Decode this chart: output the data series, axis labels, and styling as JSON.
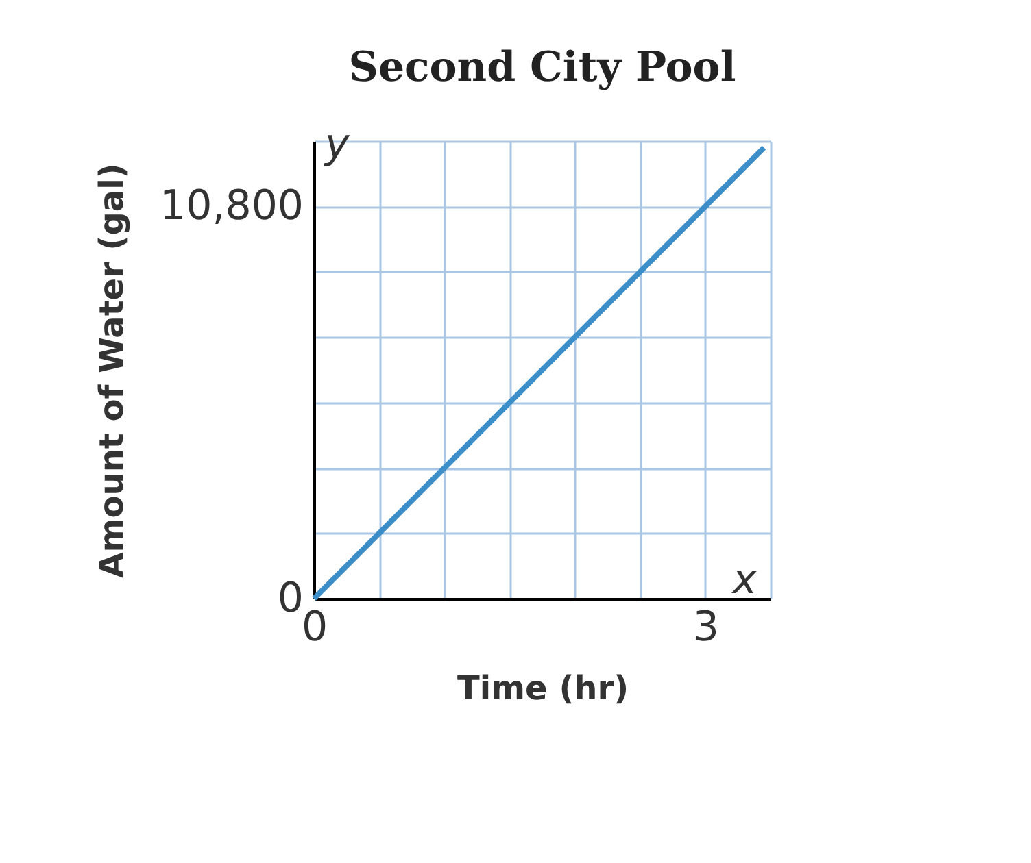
{
  "chart_data": {
    "type": "line",
    "title": "Second City Pool",
    "xlabel": "Time (hr)",
    "ylabel": "Amount of Water (gal)",
    "x": [
      0,
      3.45
    ],
    "series": [
      {
        "color": "#3b8ec8",
        "values": [
          0,
          12420
        ]
      }
    ],
    "xlim": [
      0,
      3.5
    ],
    "ylim": [
      0,
      12600
    ],
    "xticks": [
      0,
      {
        "value": 0.5,
        "label": null
      },
      {
        "value": 1,
        "label": null
      },
      {
        "value": 1.5,
        "label": null
      },
      {
        "value": 2,
        "label": null
      },
      {
        "value": 2.5,
        "label": null
      },
      3,
      {
        "value": 3.5,
        "label": null
      }
    ],
    "yticks": [
      0,
      {
        "value": 1800,
        "label": null
      },
      {
        "value": 3600,
        "label": null
      },
      {
        "value": 5400,
        "label": null
      },
      {
        "value": 7200,
        "label": null
      },
      {
        "value": 9000,
        "label": null
      },
      {
        "value": 10800,
        "label": "10,800"
      },
      {
        "value": 12600,
        "label": null
      }
    ],
    "grid": true,
    "marker": "none",
    "line_style": "solid",
    "annotations": [
      "y",
      "x"
    ]
  }
}
